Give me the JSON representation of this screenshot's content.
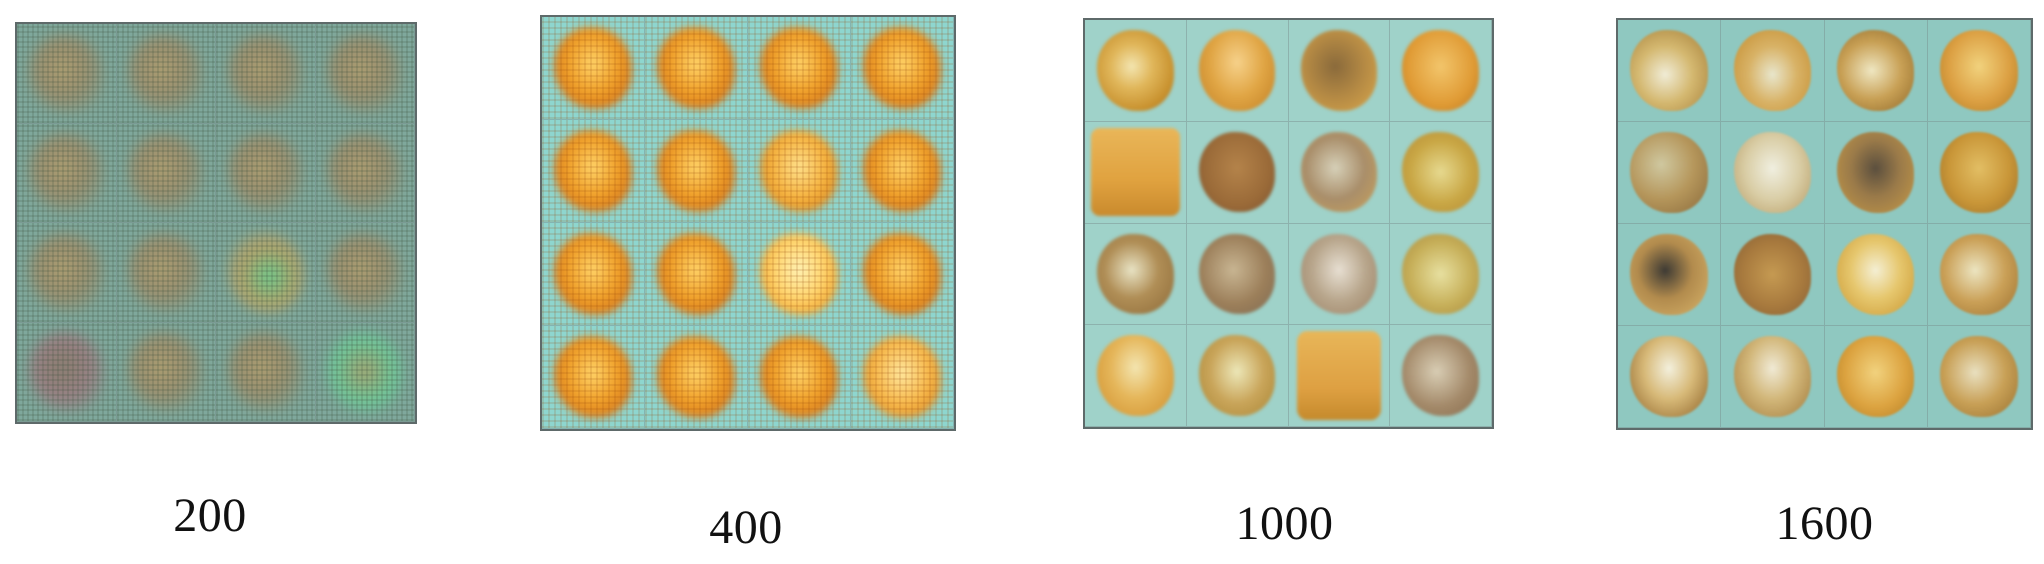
{
  "panels": [
    {
      "label": "200"
    },
    {
      "label": "400"
    },
    {
      "label": "1000"
    },
    {
      "label": "1600"
    }
  ]
}
